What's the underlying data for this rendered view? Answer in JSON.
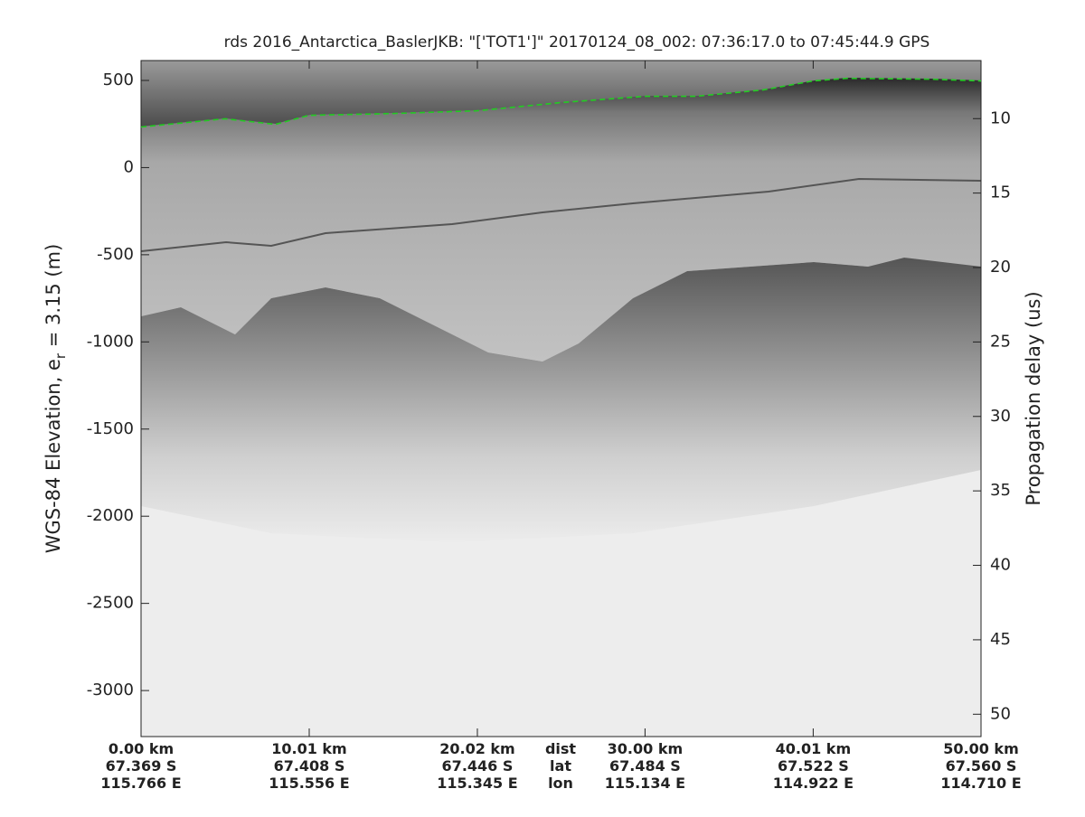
{
  "chart_data": {
    "type": "line",
    "title": "rds 2016_Antarctica_BaslerJKB: \"['TOT1']\"  20170124_08_002: 07:36:17.0 to 07:45:44.9 GPS",
    "ylabel_parts": [
      "WGS-84 Elevation, e",
      "r",
      " = 3.15 (m)"
    ],
    "y2label": "Propagation delay (us)",
    "x": [
      0,
      5,
      8,
      10,
      15,
      20,
      25,
      30,
      33,
      37,
      40,
      42,
      47,
      50
    ],
    "series": [
      {
        "color": "#22cc22",
        "dashed": true,
        "values": [
          233,
          280,
          248,
          300,
          310,
          326,
          373,
          409,
          409,
          445,
          497,
          512,
          507,
          497
        ]
      }
    ],
    "xlim": [
      0,
      50
    ],
    "xticks": [
      {
        "value": 0,
        "label": "0.00 km"
      },
      {
        "value": 10.01,
        "label": "10.01 km"
      },
      {
        "value": 20.02,
        "label": "20.02 km"
      },
      {
        "value": 30.0,
        "label": "30.00 km"
      },
      {
        "value": 40.01,
        "label": "40.01 km"
      },
      {
        "value": 50.0,
        "label": "50.00 km"
      }
    ],
    "lat_labels": [
      "67.369 S",
      "67.408 S",
      "67.446 S",
      "67.484 S",
      "67.522 S",
      "67.560 S"
    ],
    "lon_labels": [
      "115.766 E",
      "115.556 E",
      "115.345 E",
      "115.134 E",
      "114.922 E",
      "114.710 E"
    ],
    "row_labels": [
      "dist",
      "lat",
      "lon"
    ],
    "ylim": [
      -3264,
      614
    ],
    "yticks": [
      500,
      0,
      -500,
      -1000,
      -1500,
      -2000,
      -2500,
      -3000
    ],
    "y2lim": [
      6.1,
      51.5
    ],
    "y2_inverted": true,
    "y2ticks": [
      10,
      15,
      20,
      25,
      30,
      35,
      40,
      45,
      50
    ]
  }
}
